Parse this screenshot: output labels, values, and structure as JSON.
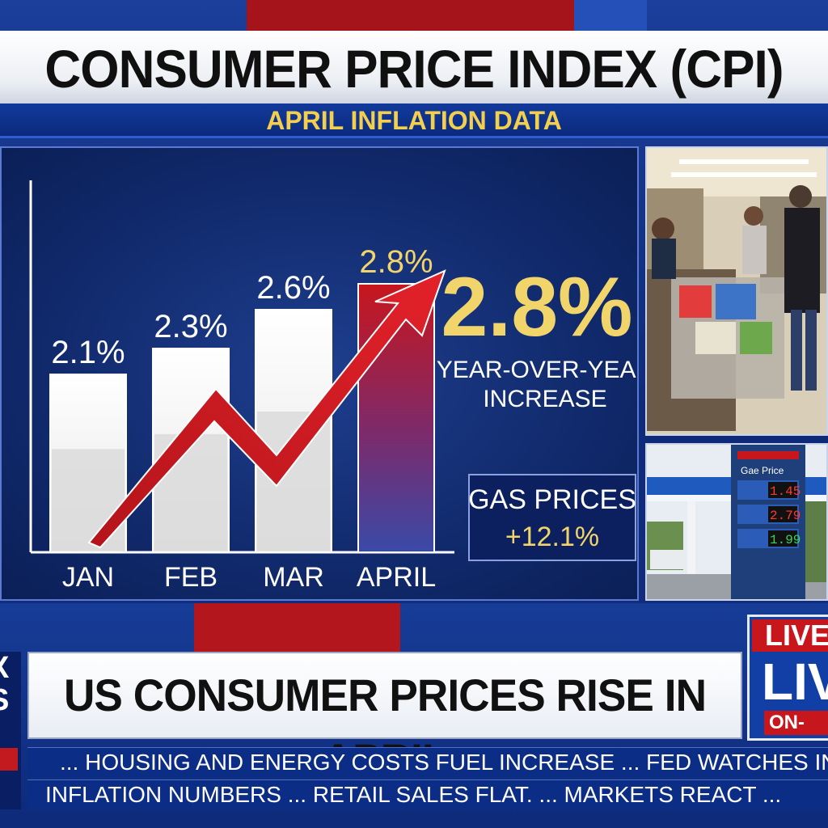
{
  "header": {
    "title": "CONSUMER PRICE INDEX (CPI)",
    "subtitle": "APRIL INFLATION DATA"
  },
  "chart_data": {
    "type": "bar",
    "categories": [
      "JAN",
      "FEB",
      "MAR",
      "APRIL"
    ],
    "values": [
      2.1,
      2.3,
      2.6,
      2.8
    ],
    "value_labels": [
      "2.1%",
      "2.3%",
      "2.6%",
      "2.8%"
    ],
    "title": "",
    "xlabel": "",
    "ylabel": "",
    "grid": false,
    "highlight_color": "#c8161d",
    "bar_color": "#ffffff",
    "label_color": "#ffffff",
    "highlight_label_color": "#f2d56a"
  },
  "callout": {
    "big_value": "2.8%",
    "caption_line1": "YEAR-OVER-YEAR",
    "caption_line2": "INCREASE"
  },
  "gas_box": {
    "line1": "GAS PRICES",
    "line2": "+12.1%"
  },
  "gas_photo": {
    "sign_title": "Gae Price",
    "prices": [
      "1.45",
      "2.79",
      "1.99"
    ]
  },
  "ticker": {
    "headline": "US CONSUMER PRICES RISE IN APRIL",
    "line1": "... HOUSING AND ENERGY COSTS FUEL INCREASE ... FED WATCHES INFL",
    "line2": "INFLATION NUMBERS ... RETAIL SALES FLAT. ... MARKETS REACT ..."
  },
  "live_badge": {
    "top": "LIVE",
    "middle": "LIVE",
    "bottom": "ON-AIR"
  },
  "logo": {
    "text": "X\nS"
  },
  "colors": {
    "accent_gold": "#f2cf4e",
    "brand_blue": "#0f2a78",
    "alert_red": "#c8161d"
  }
}
